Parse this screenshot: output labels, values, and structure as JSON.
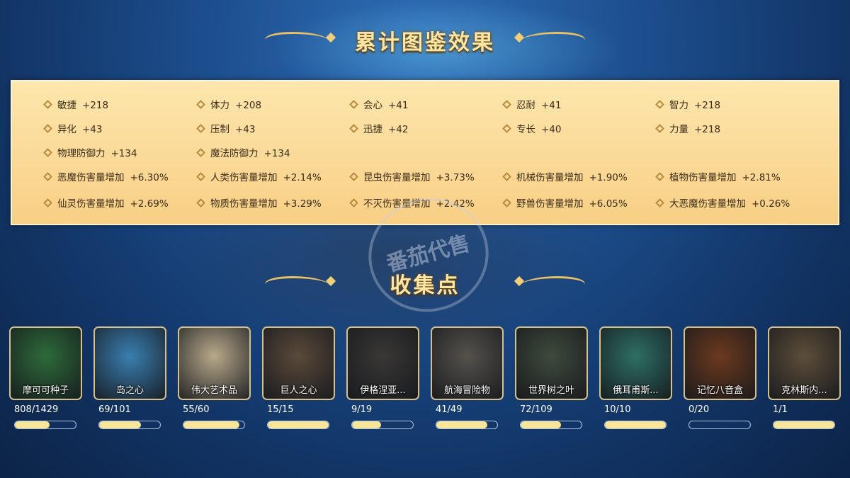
{
  "header": {
    "title": "累计图鉴效果"
  },
  "stats": [
    [
      {
        "name": "敏捷",
        "value": "+218"
      },
      {
        "name": "体力",
        "value": "+208"
      },
      {
        "name": "会心",
        "value": "+41"
      },
      {
        "name": "忍耐",
        "value": "+41"
      },
      {
        "name": "智力",
        "value": "+218"
      }
    ],
    [
      {
        "name": "异化",
        "value": "+43"
      },
      {
        "name": "压制",
        "value": "+43"
      },
      {
        "name": "迅捷",
        "value": "+42"
      },
      {
        "name": "专长",
        "value": "+40"
      },
      {
        "name": "力量",
        "value": "+218"
      }
    ],
    [
      {
        "name": "物理防御力",
        "value": "+134"
      },
      {
        "name": "魔法防御力",
        "value": "+134"
      }
    ],
    [
      {
        "name": "恶魔伤害量增加",
        "value": "+6.30%"
      },
      {
        "name": "人类伤害量增加",
        "value": "+2.14%"
      },
      {
        "name": "昆虫伤害量增加",
        "value": "+3.73%"
      },
      {
        "name": "机械伤害量增加",
        "value": "+1.90%"
      },
      {
        "name": "植物伤害量增加",
        "value": "+2.81%"
      }
    ],
    [
      {
        "name": "仙灵伤害量增加",
        "value": "+2.69%"
      },
      {
        "name": "物质伤害量增加",
        "value": "+3.29%"
      },
      {
        "name": "不灭伤害量增加",
        "value": "+2.42%"
      },
      {
        "name": "野兽伤害量增加",
        "value": "+6.05%"
      },
      {
        "name": "大恶魔伤害量增加",
        "value": "+0.26%"
      }
    ]
  ],
  "collection": {
    "title": "收集点",
    "items": [
      {
        "name": "摩可可种子",
        "count": "808/1429",
        "progress": 0.565,
        "color": "#2e6b3a"
      },
      {
        "name": "岛之心",
        "count": "69/101",
        "progress": 0.683,
        "color": "#3a7fb0"
      },
      {
        "name": "伟大艺术品",
        "count": "55/60",
        "progress": 0.917,
        "color": "#b8a98a"
      },
      {
        "name": "巨人之心",
        "count": "15/15",
        "progress": 1,
        "color": "#5a4a3a"
      },
      {
        "name": "伊格涅亚...",
        "count": "9/19",
        "progress": 0.474,
        "color": "#3a3836"
      },
      {
        "name": "航海冒险物",
        "count": "41/49",
        "progress": 0.837,
        "color": "#55524b"
      },
      {
        "name": "世界树之叶",
        "count": "72/109",
        "progress": 0.661,
        "color": "#3f4a3c"
      },
      {
        "name": "俄耳甫斯...",
        "count": "10/10",
        "progress": 1,
        "color": "#2e6f63"
      },
      {
        "name": "记忆八音盒",
        "count": "0/20",
        "progress": 0,
        "color": "#6b3a1e"
      },
      {
        "name": "克林斯内...",
        "count": "1/1",
        "progress": 1,
        "color": "#5c4e3a"
      }
    ]
  },
  "watermark": "番茄代售",
  "colors": {
    "panel": "#fbdc9c",
    "accent": "#f2cf77",
    "bar_fill": "#f8e59a"
  }
}
